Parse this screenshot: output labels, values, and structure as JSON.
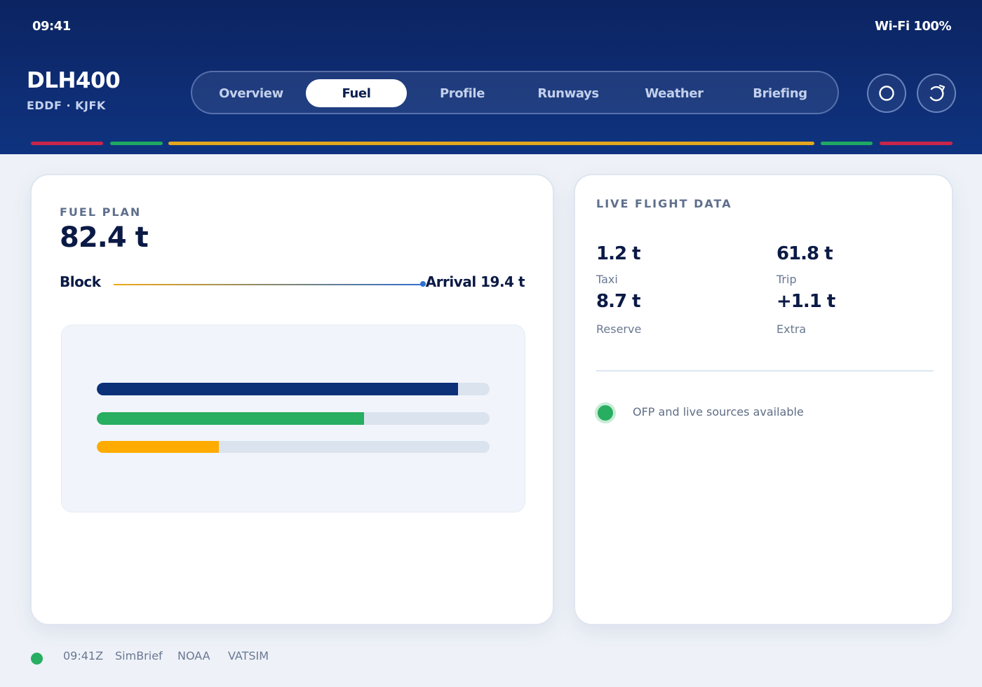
{
  "status": {
    "time": "09:41",
    "wifi": "Wi-Fi 100%"
  },
  "flight": {
    "callsign": "DLH400",
    "route": "EDDF · KJFK"
  },
  "tabs": [
    {
      "label": "Overview",
      "active": false
    },
    {
      "label": "Fuel",
      "active": true
    },
    {
      "label": "Profile",
      "active": false
    },
    {
      "label": "Runways",
      "active": false
    },
    {
      "label": "Weather",
      "active": false
    },
    {
      "label": "Briefing",
      "active": false
    }
  ],
  "header_icons": [
    "circle-icon",
    "refresh-icon"
  ],
  "stripes": [
    {
      "color": "#c8264a"
    },
    {
      "color": "#1fa862"
    },
    {
      "color": "#e3a71e"
    },
    {
      "color": "#1fa862"
    },
    {
      "color": "#c8264a"
    }
  ],
  "fuel_plan": {
    "eyebrow": "FUEL PLAN",
    "value": "82.4 t",
    "block_label": "Block",
    "arrival_label": "Arrival 19.4 t",
    "bars": [
      {
        "fraction": 0.92,
        "color": "#0d3179"
      },
      {
        "fraction": 0.68,
        "color": "#27ae60"
      },
      {
        "fraction": 0.31,
        "color": "#ffab00"
      }
    ]
  },
  "live": {
    "eyebrow": "LIVE FLIGHT DATA",
    "metrics": [
      {
        "value": "1.2 t",
        "label": "Taxi"
      },
      {
        "value": "61.8 t",
        "label": "Trip"
      },
      {
        "value": "8.7 t",
        "label": "Reserve"
      },
      {
        "value": "+1.1 t",
        "label": "Extra"
      }
    ],
    "status_text": "OFP and live sources available"
  },
  "footer": {
    "items": [
      "09:41Z",
      "SimBrief",
      "NOAA",
      "VATSIM"
    ]
  }
}
